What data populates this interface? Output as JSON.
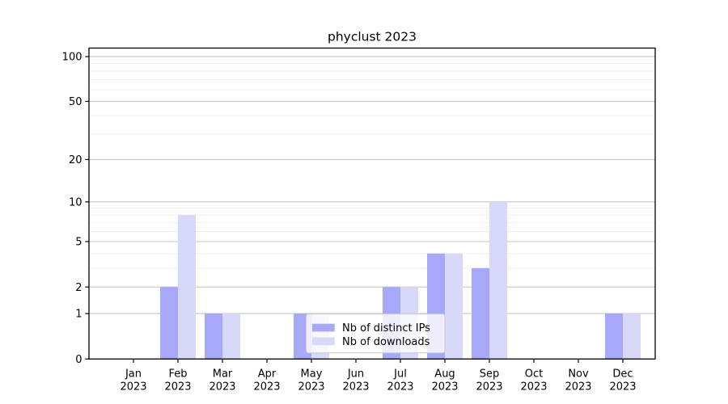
{
  "title": "phyclust 2023",
  "background": "#ffffff",
  "colors": {
    "distinct_ips": "#a8a8f8",
    "downloads": "#d8d8f8",
    "grid_major": "#c6c6c6",
    "grid_minor": "#ededed",
    "axis": "#000000",
    "legend_border": "#cccccc"
  },
  "chart_data": {
    "type": "bar",
    "title": "phyclust 2023",
    "categories": [
      "Jan 2023",
      "Feb 2023",
      "Mar 2023",
      "Apr 2023",
      "May 2023",
      "Jun 2023",
      "Jul 2023",
      "Aug 2023",
      "Sep 2023",
      "Oct 2023",
      "Nov 2023",
      "Dec 2023"
    ],
    "months": [
      "Jan",
      "Feb",
      "Mar",
      "Apr",
      "May",
      "Jun",
      "Jul",
      "Aug",
      "Sep",
      "Oct",
      "Nov",
      "Dec"
    ],
    "year": "2023",
    "series": [
      {
        "name": "Nb of distinct IPs",
        "color": "#a8a8f8",
        "values": [
          0,
          2,
          1,
          0,
          1,
          0,
          2,
          4,
          3,
          0,
          0,
          1
        ]
      },
      {
        "name": "Nb of downloads",
        "color": "#d8d8f8",
        "values": [
          0,
          8,
          1,
          0,
          1,
          0,
          2,
          4,
          10,
          0,
          0,
          1
        ]
      }
    ],
    "yscale": "log1p",
    "yticks": [
      0,
      1,
      2,
      5,
      10,
      20,
      50,
      100
    ],
    "minor_yticks": [
      3,
      4,
      6,
      7,
      8,
      9,
      30,
      40,
      60,
      70,
      80,
      90
    ],
    "ylim": [
      0,
      114
    ],
    "xlabel": "",
    "ylabel": "",
    "grid": true,
    "legend_position": "inside lower-center-left"
  }
}
